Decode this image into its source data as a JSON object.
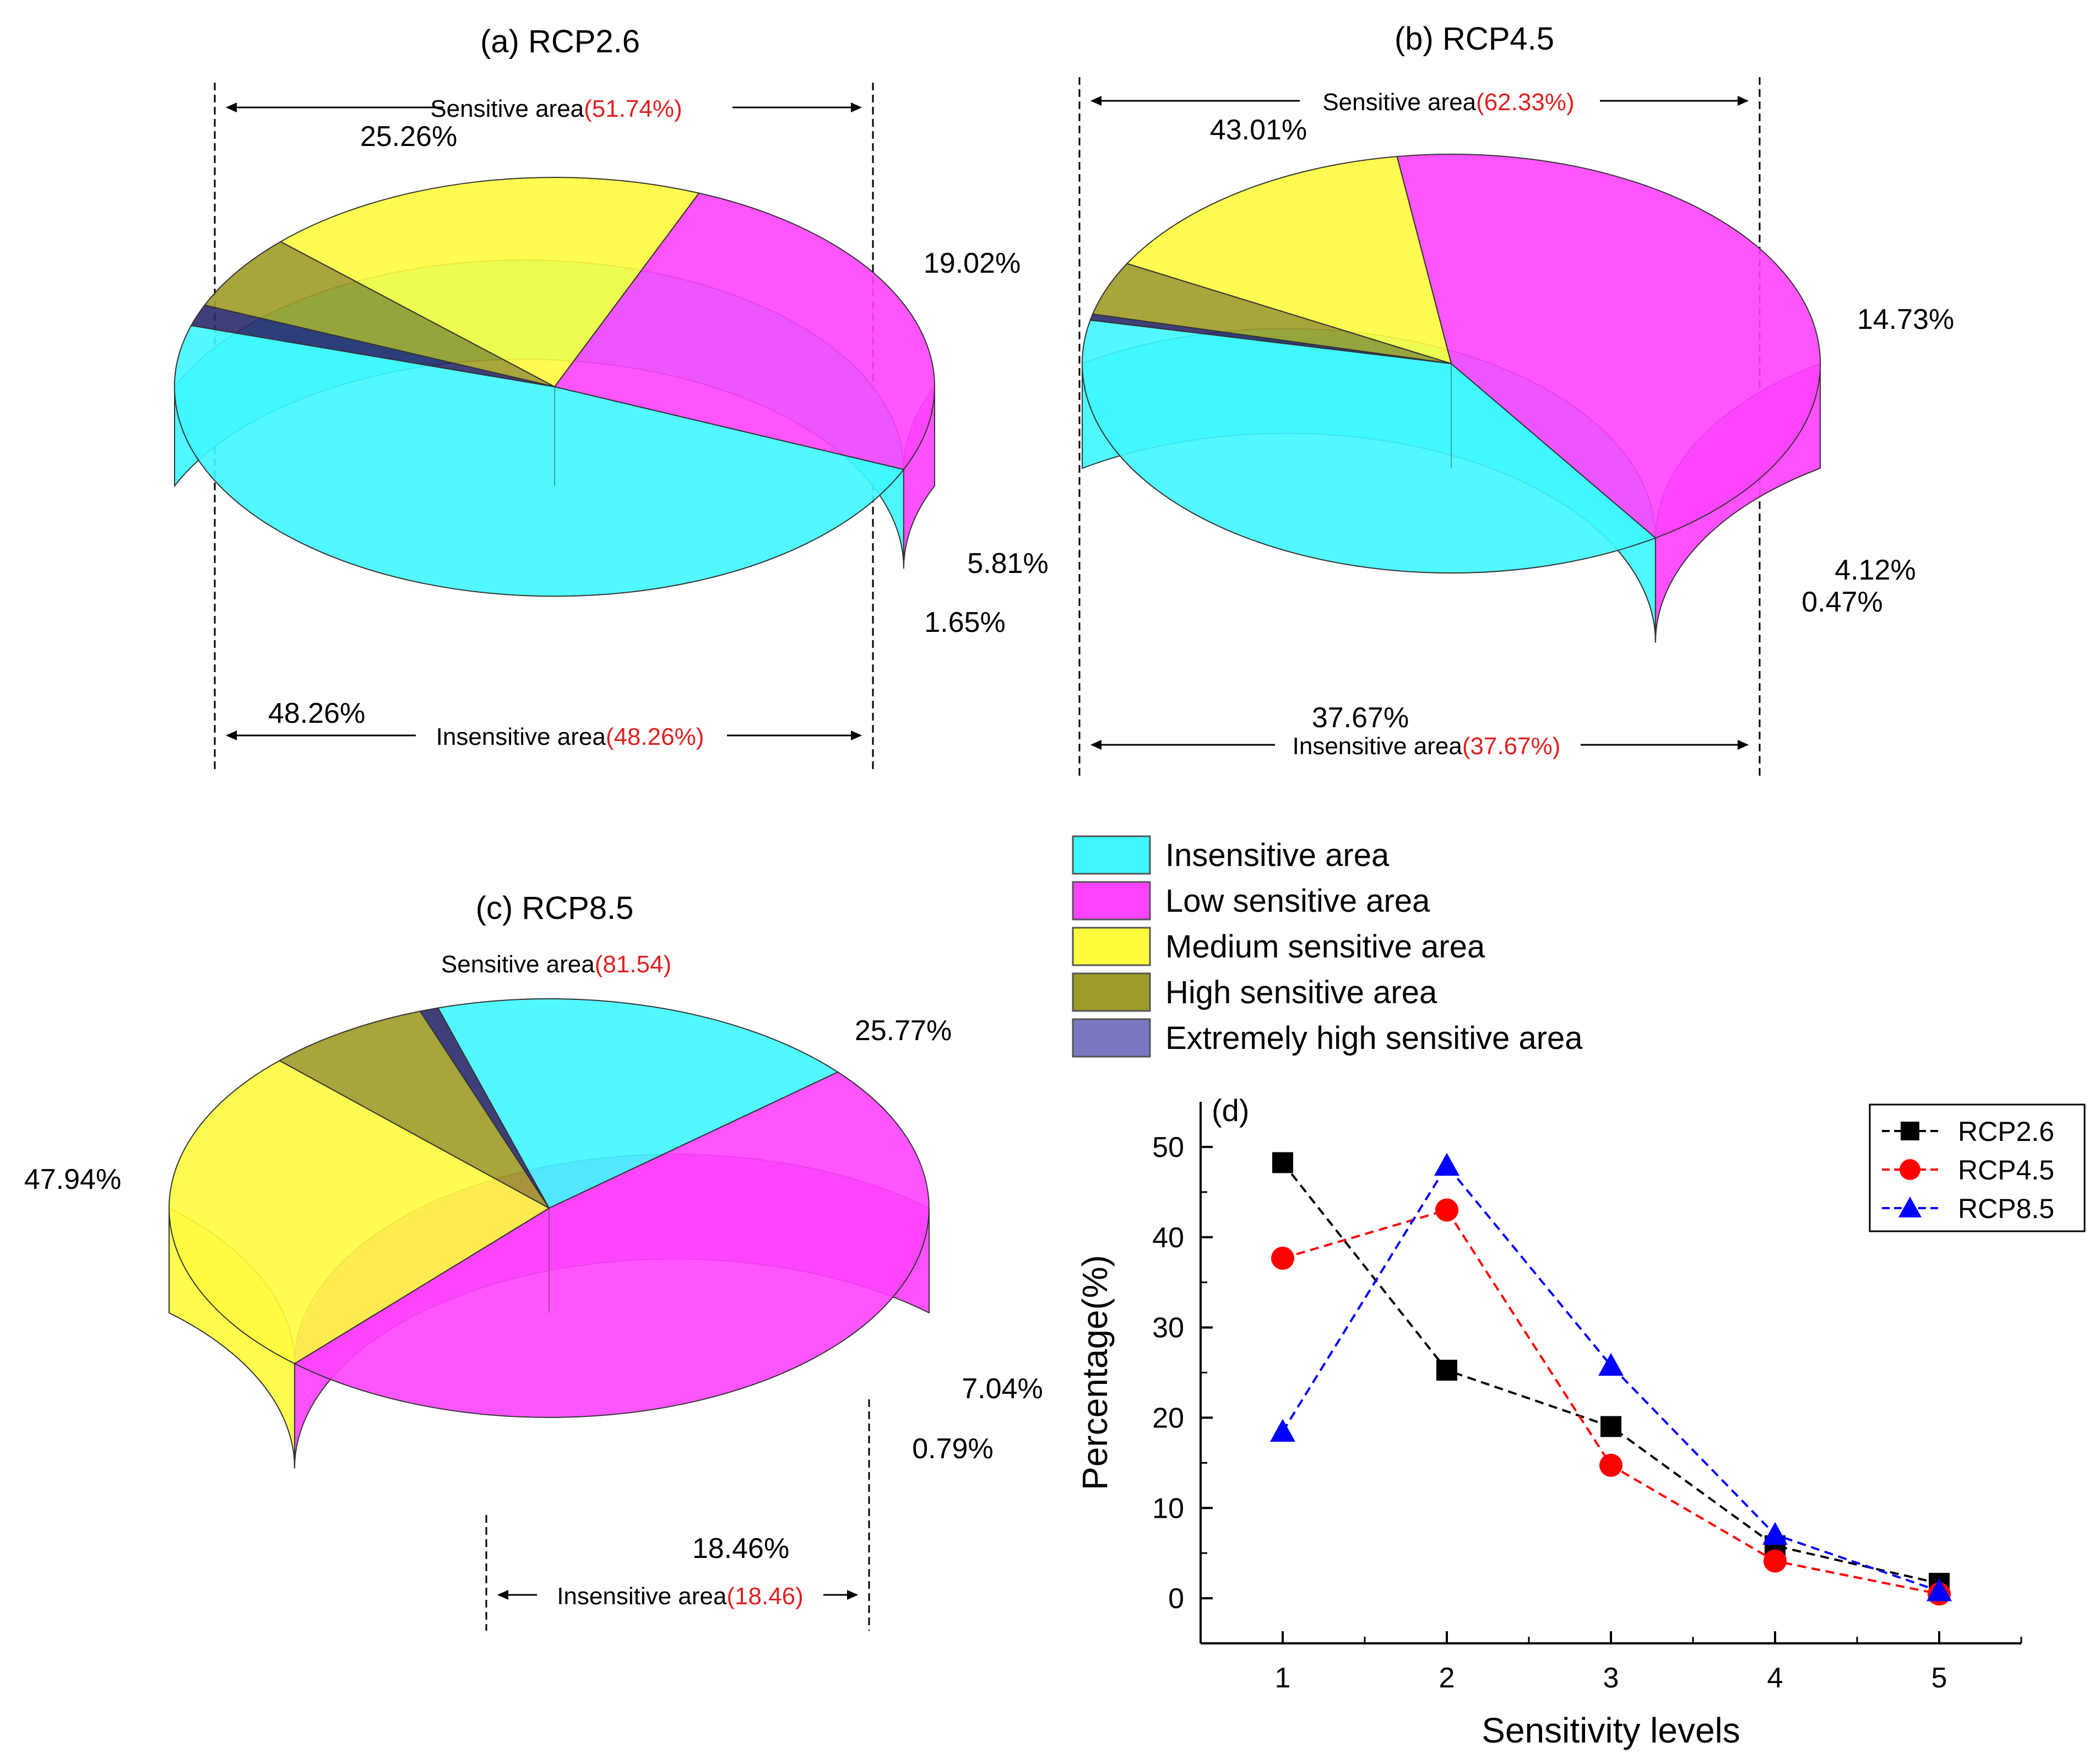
{
  "colors": {
    "insensitive": "#3ff7ff",
    "low": "#ff42ff",
    "medium": "#fffc3e",
    "high": "#9d9b26",
    "extreme": "#2a2a6c",
    "highlight": "#e02020",
    "rcp26": "#000000",
    "rcp45": "#ff0000",
    "rcp85": "#0000ff"
  },
  "legend": {
    "items": [
      {
        "key": "insensitive",
        "label": "Insensitive area",
        "color": "#3ff7ff"
      },
      {
        "key": "low",
        "label": "Low sensitive area",
        "color": "#ff42ff"
      },
      {
        "key": "medium",
        "label": "Medium sensitive area",
        "color": "#fffc3e"
      },
      {
        "key": "high",
        "label": "High sensitive area",
        "color": "#9d9b26"
      },
      {
        "key": "extreme",
        "label": "Extremely high sensitive area",
        "color": "#7a78c0"
      }
    ]
  },
  "pies": {
    "a": {
      "title": "(a) RCP2.6",
      "sensitive_text": "Sensitive area",
      "sensitive_value": "(51.74%)",
      "insensitive_text": "Insensitive area",
      "insensitive_value": "(48.26%)",
      "labels": [
        "48.26%",
        "25.26%",
        "19.02%",
        "5.81%",
        "1.65%"
      ]
    },
    "b": {
      "title": "(b) RCP4.5",
      "sensitive_text": "Sensitive area",
      "sensitive_value": "(62.33%)",
      "insensitive_text": "Insensitive area",
      "insensitive_value": "(37.67%)",
      "labels": [
        "37.67%",
        "43.01%",
        "14.73%",
        "4.12%",
        "0.47%"
      ]
    },
    "c": {
      "title": "(c) RCP8.5",
      "sensitive_text": "Sensitive area",
      "sensitive_value": "(81.54)",
      "insensitive_text": "Insensitive area",
      "insensitive_value": "(18.46)",
      "labels": [
        "18.46%",
        "47.94%",
        "25.77%",
        "7.04%",
        "0.79%"
      ]
    }
  },
  "chart_data": [
    {
      "type": "pie",
      "title": "(a) RCP2.6",
      "categories": [
        "Insensitive area",
        "Low sensitive area",
        "Medium sensitive area",
        "High sensitive area",
        "Extremely high sensitive area"
      ],
      "values": [
        48.26,
        25.26,
        19.02,
        5.81,
        1.65
      ],
      "annotations": [
        "Sensitive area (51.74%)",
        "Insensitive area (48.26%)"
      ]
    },
    {
      "type": "pie",
      "title": "(b) RCP4.5",
      "categories": [
        "Insensitive area",
        "Low sensitive area",
        "Medium sensitive area",
        "High sensitive area",
        "Extremely high sensitive area"
      ],
      "values": [
        37.67,
        43.01,
        14.73,
        4.12,
        0.47
      ],
      "annotations": [
        "Sensitive area (62.33%)",
        "Insensitive area (37.67%)"
      ]
    },
    {
      "type": "pie",
      "title": "(c) RCP8.5",
      "categories": [
        "Insensitive area",
        "Low sensitive area",
        "Medium sensitive area",
        "High sensitive area",
        "Extremely high sensitive area"
      ],
      "values": [
        18.46,
        47.94,
        25.77,
        7.04,
        0.79
      ],
      "annotations": [
        "Sensitive area (81.54)",
        "Insensitive area (18.46)"
      ]
    },
    {
      "type": "line",
      "title": "(d)",
      "xlabel": "Sensitivity levels",
      "ylabel": "Percentage(%)",
      "x": [
        1,
        2,
        3,
        4,
        5
      ],
      "xlim": [
        0.5,
        5.5
      ],
      "ylim": [
        -5,
        55
      ],
      "xticks": [
        "1",
        "2",
        "3",
        "4",
        "5"
      ],
      "yticks": [
        "0",
        "10",
        "20",
        "30",
        "40",
        "50"
      ],
      "legend_position": "top-right",
      "series": [
        {
          "name": "RCP2.6",
          "marker": "square",
          "color": "#000000",
          "values": [
            48.26,
            25.26,
            19.02,
            5.81,
            1.65
          ]
        },
        {
          "name": "RCP4.5",
          "marker": "circle",
          "color": "#ff0000",
          "values": [
            37.67,
            43.01,
            14.73,
            4.12,
            0.47
          ]
        },
        {
          "name": "RCP8.5",
          "marker": "triangle",
          "color": "#0000ff",
          "values": [
            18.46,
            47.94,
            25.77,
            7.04,
            0.79
          ]
        }
      ]
    }
  ]
}
